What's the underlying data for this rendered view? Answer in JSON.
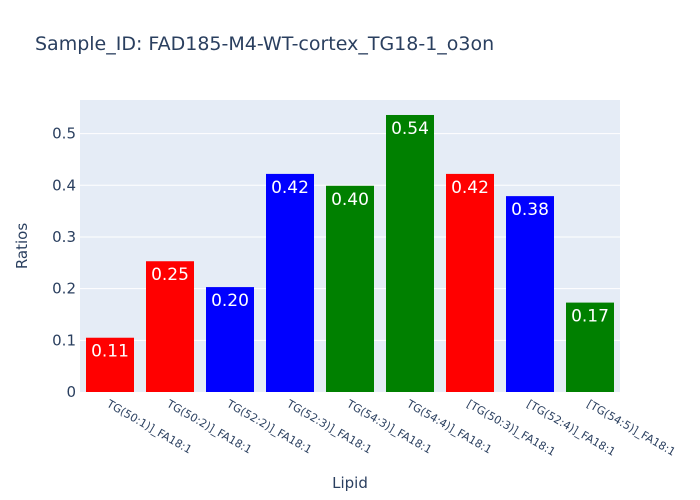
{
  "chart_data": {
    "type": "bar",
    "title": "Sample_ID: FAD185-M4-WT-cortex_TG18-1_o3on",
    "xlabel": "Lipid",
    "ylabel": "Ratios",
    "categories": [
      "TG(50:1)]_FA18:1",
      "TG(50:2)]_FA18:1",
      "TG(52:2)]_FA18:1",
      "TG(52:3)]_FA18:1",
      "TG(54:3)]_FA18:1",
      "TG(54:4)]_FA18:1",
      "[TG(50:3)]_FA18:1",
      "[TG(52:4)]_FA18:1",
      "[TG(54:5)]_FA18:1"
    ],
    "values": [
      0.105,
      0.253,
      0.203,
      0.422,
      0.399,
      0.536,
      0.422,
      0.379,
      0.173
    ],
    "data_labels": [
      "0.11",
      "0.25",
      "0.20",
      "0.42",
      "0.40",
      "0.54",
      "0.42",
      "0.38",
      "0.17"
    ],
    "bar_colors": [
      "#ff0000",
      "#ff0000",
      "#0000ff",
      "#0000ff",
      "#008000",
      "#008000",
      "#ff0000",
      "#0000ff",
      "#008000"
    ],
    "ylim": [
      0,
      0.565
    ],
    "yticks": [
      0,
      0.1,
      0.2,
      0.3,
      0.4,
      0.5
    ],
    "ytick_labels": [
      "0",
      "0.1",
      "0.2",
      "0.3",
      "0.4",
      "0.5"
    ],
    "grid": true,
    "legend": "none",
    "colors": {
      "plot_background": "#e5ecf6",
      "grid": "#ffffff",
      "text": "#2a3f5f",
      "bar_label": "#ffffff"
    }
  }
}
